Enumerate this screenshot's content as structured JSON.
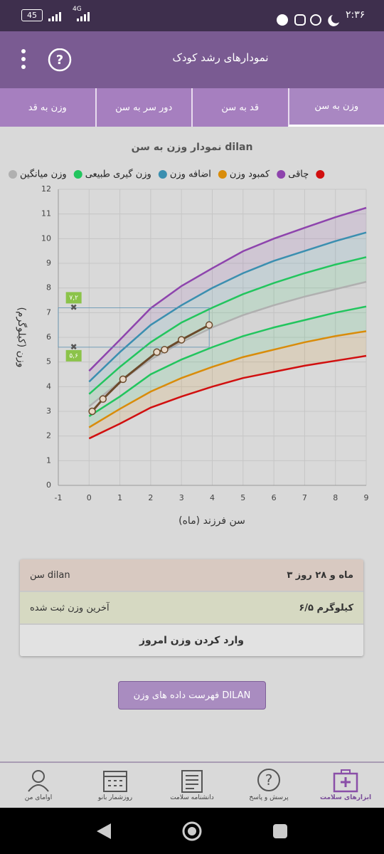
{
  "status_bar": {
    "time": "۲:۳۶",
    "battery": "45",
    "network": "4G"
  },
  "app_bar": {
    "title": "نمودارهای رشد کودک"
  },
  "tabs": [
    {
      "label": "وزن به قد",
      "selected": false
    },
    {
      "label": "دور سر به سن",
      "selected": false
    },
    {
      "label": "قد به سن",
      "selected": false
    },
    {
      "label": "وزن به سن",
      "selected": true
    }
  ],
  "chart_data": {
    "type": "line",
    "title": "نمودار وزن به سن dilan",
    "x_label": "سن فرزند (ماه)",
    "y_label": "وزن (کیلوگرم)",
    "xlim": [
      -1,
      9
    ],
    "ylim": [
      0,
      12
    ],
    "xticks": [
      -1,
      0,
      1,
      2,
      3,
      4,
      5,
      6,
      7,
      8,
      9
    ],
    "yticks": [
      0,
      1,
      2,
      3,
      4,
      5,
      6,
      7,
      8,
      9,
      10,
      11,
      12
    ],
    "grid": true,
    "x": [
      0,
      1,
      2,
      3,
      4,
      5,
      6,
      7,
      8,
      9
    ],
    "series": [
      {
        "name": "وزن میانگین",
        "color": "#b0b0b0",
        "in_legend": true,
        "fill_to": 6,
        "values": [
          3.2,
          4.2,
          5.1,
          5.8,
          6.4,
          6.9,
          7.3,
          7.65,
          7.95,
          8.25
        ]
      },
      {
        "name": "وزن گیری طبیعی",
        "color": "#22c55e",
        "in_legend": true,
        "fill_to": 0,
        "values": [
          3.7,
          4.8,
          5.8,
          6.6,
          7.2,
          7.75,
          8.2,
          8.6,
          8.95,
          9.25
        ]
      },
      {
        "name": "اضافه وزن",
        "color": "#3b8fb0",
        "in_legend": true,
        "fill_to": 1,
        "values": [
          4.2,
          5.4,
          6.5,
          7.3,
          8.0,
          8.6,
          9.1,
          9.5,
          9.9,
          10.25
        ]
      },
      {
        "name": "کمبود وزن",
        "color": "#d98c0a",
        "in_legend": true,
        "fill_to": 5,
        "values": [
          2.35,
          3.1,
          3.8,
          4.35,
          4.8,
          5.2,
          5.5,
          5.8,
          6.05,
          6.25
        ]
      },
      {
        "name": "چاقی",
        "color": "#8e44ad",
        "in_legend": true,
        "fill_to": 2,
        "values": [
          4.64,
          5.9,
          7.18,
          8.08,
          8.8,
          9.49,
          10.0,
          10.44,
          10.87,
          11.25
        ]
      },
      {
        "color": "#d10f0f",
        "in_legend": true,
        "values": [
          1.9,
          2.5,
          3.15,
          3.6,
          4.0,
          4.35,
          4.6,
          4.85,
          5.05,
          5.25
        ]
      },
      {
        "color": "#22c55e",
        "in_legend": false,
        "fill_to": 3,
        "values": [
          2.8,
          3.6,
          4.5,
          5.1,
          5.6,
          6.05,
          6.4,
          6.7,
          7.0,
          7.25
        ]
      }
    ],
    "child_series": {
      "color": "#6b4a2b",
      "x": [
        0.1,
        0.45,
        1.1,
        2.2,
        2.45,
        3.0,
        3.9
      ],
      "values": [
        3.0,
        3.5,
        4.3,
        5.4,
        5.5,
        5.9,
        6.5
      ]
    },
    "range_markers": {
      "x": -0.5,
      "color": "#8bc34a",
      "values": [
        7.2,
        5.6
      ],
      "value_labels": [
        "۷,۲",
        "۵,۶"
      ]
    }
  },
  "info": {
    "rows": [
      {
        "label": "سن dilan",
        "value": "۳ ماه و ۲۸ روز"
      },
      {
        "label": "آخرین وزن ثبت شده",
        "value": "۶/۵ کیلوگرم"
      }
    ],
    "action": "وارد کردن وزن امروز"
  },
  "list_button": "فهرست داده های وزن DILAN",
  "bottom_nav": [
    {
      "label": "اوامای من",
      "active": false
    },
    {
      "label": "روزشمار بانو",
      "active": false
    },
    {
      "label": "دانشنامه سلامت",
      "active": false
    },
    {
      "label": "پرسش و پاسخ",
      "active": false
    },
    {
      "label": "ابزارهای سلامت",
      "active": true
    }
  ]
}
